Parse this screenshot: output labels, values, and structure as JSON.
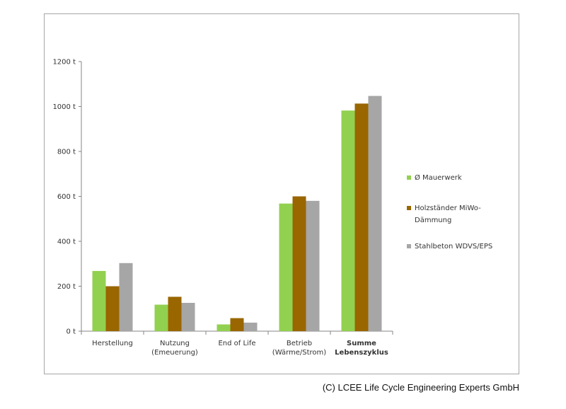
{
  "chart_data": {
    "type": "bar",
    "categories": [
      [
        "Herstellung"
      ],
      [
        "Nutzung",
        "(Emeuerung)"
      ],
      [
        "End of Life"
      ],
      [
        "Betrieb",
        "(Wärme/Strom)"
      ],
      [
        "Summe",
        "Lebenszyklus"
      ]
    ],
    "bold_categories": [
      4
    ],
    "series": [
      {
        "name": "Ø Mauerwerk",
        "name_lines": [
          "Ø Mauerwerk"
        ],
        "color": "#92d050",
        "values": [
          268,
          118,
          30,
          568,
          982
        ]
      },
      {
        "name": "Holzständer MiWo-Dämmung",
        "name_lines": [
          "Holzständer MiWo-",
          "Dämmung"
        ],
        "color": "#996600",
        "values": [
          200,
          153,
          58,
          600,
          1013
        ]
      },
      {
        "name": "Stahlbeton WDVS/EPS",
        "name_lines": [
          "Stahlbeton WDVS/EPS"
        ],
        "color": "#a6a6a6",
        "values": [
          303,
          126,
          38,
          580,
          1047
        ]
      }
    ],
    "yticks": [
      0,
      200,
      400,
      600,
      800,
      1000,
      1200
    ],
    "ytick_labels": [
      "0 t",
      "200 t",
      "400 t",
      "600 t",
      "800 t",
      "1000 t",
      "1200 t"
    ],
    "ylim": [
      0,
      1200
    ],
    "grid": false,
    "legend_position": "right"
  },
  "footer": {
    "copyright": "(C) LCEE Life Cycle Engineering Experts GmbH"
  }
}
